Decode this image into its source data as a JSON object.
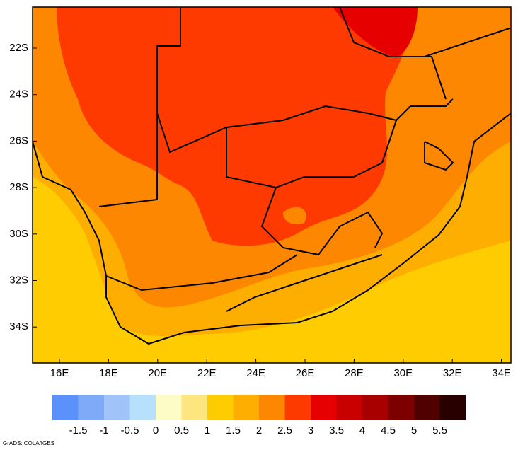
{
  "map": {
    "lat_labels": [
      "22S",
      "24S",
      "26S",
      "28S",
      "30S",
      "32S",
      "34S"
    ],
    "lon_labels": [
      "16E",
      "18E",
      "20E",
      "22E",
      "24E",
      "26E",
      "28E",
      "30E",
      "32E",
      "34E"
    ]
  },
  "colorbar": {
    "colors": [
      "#5b91fa",
      "#7faaf7",
      "#a0c4fa",
      "#b6e0fb",
      "#fefcc6",
      "#fde67e",
      "#fecc00",
      "#feae00",
      "#fd8700",
      "#fe3a00",
      "#e60000",
      "#c80000",
      "#a80000",
      "#7d0000",
      "#510000",
      "#280000"
    ],
    "labels": [
      "-1.5",
      "-1",
      "-0.5",
      "0",
      "0.5",
      "1",
      "1.5",
      "2",
      "2.5",
      "3",
      "3.5",
      "4",
      "4.5",
      "5",
      "5.5"
    ]
  },
  "credit": "GrADS: COLA/IGES"
}
